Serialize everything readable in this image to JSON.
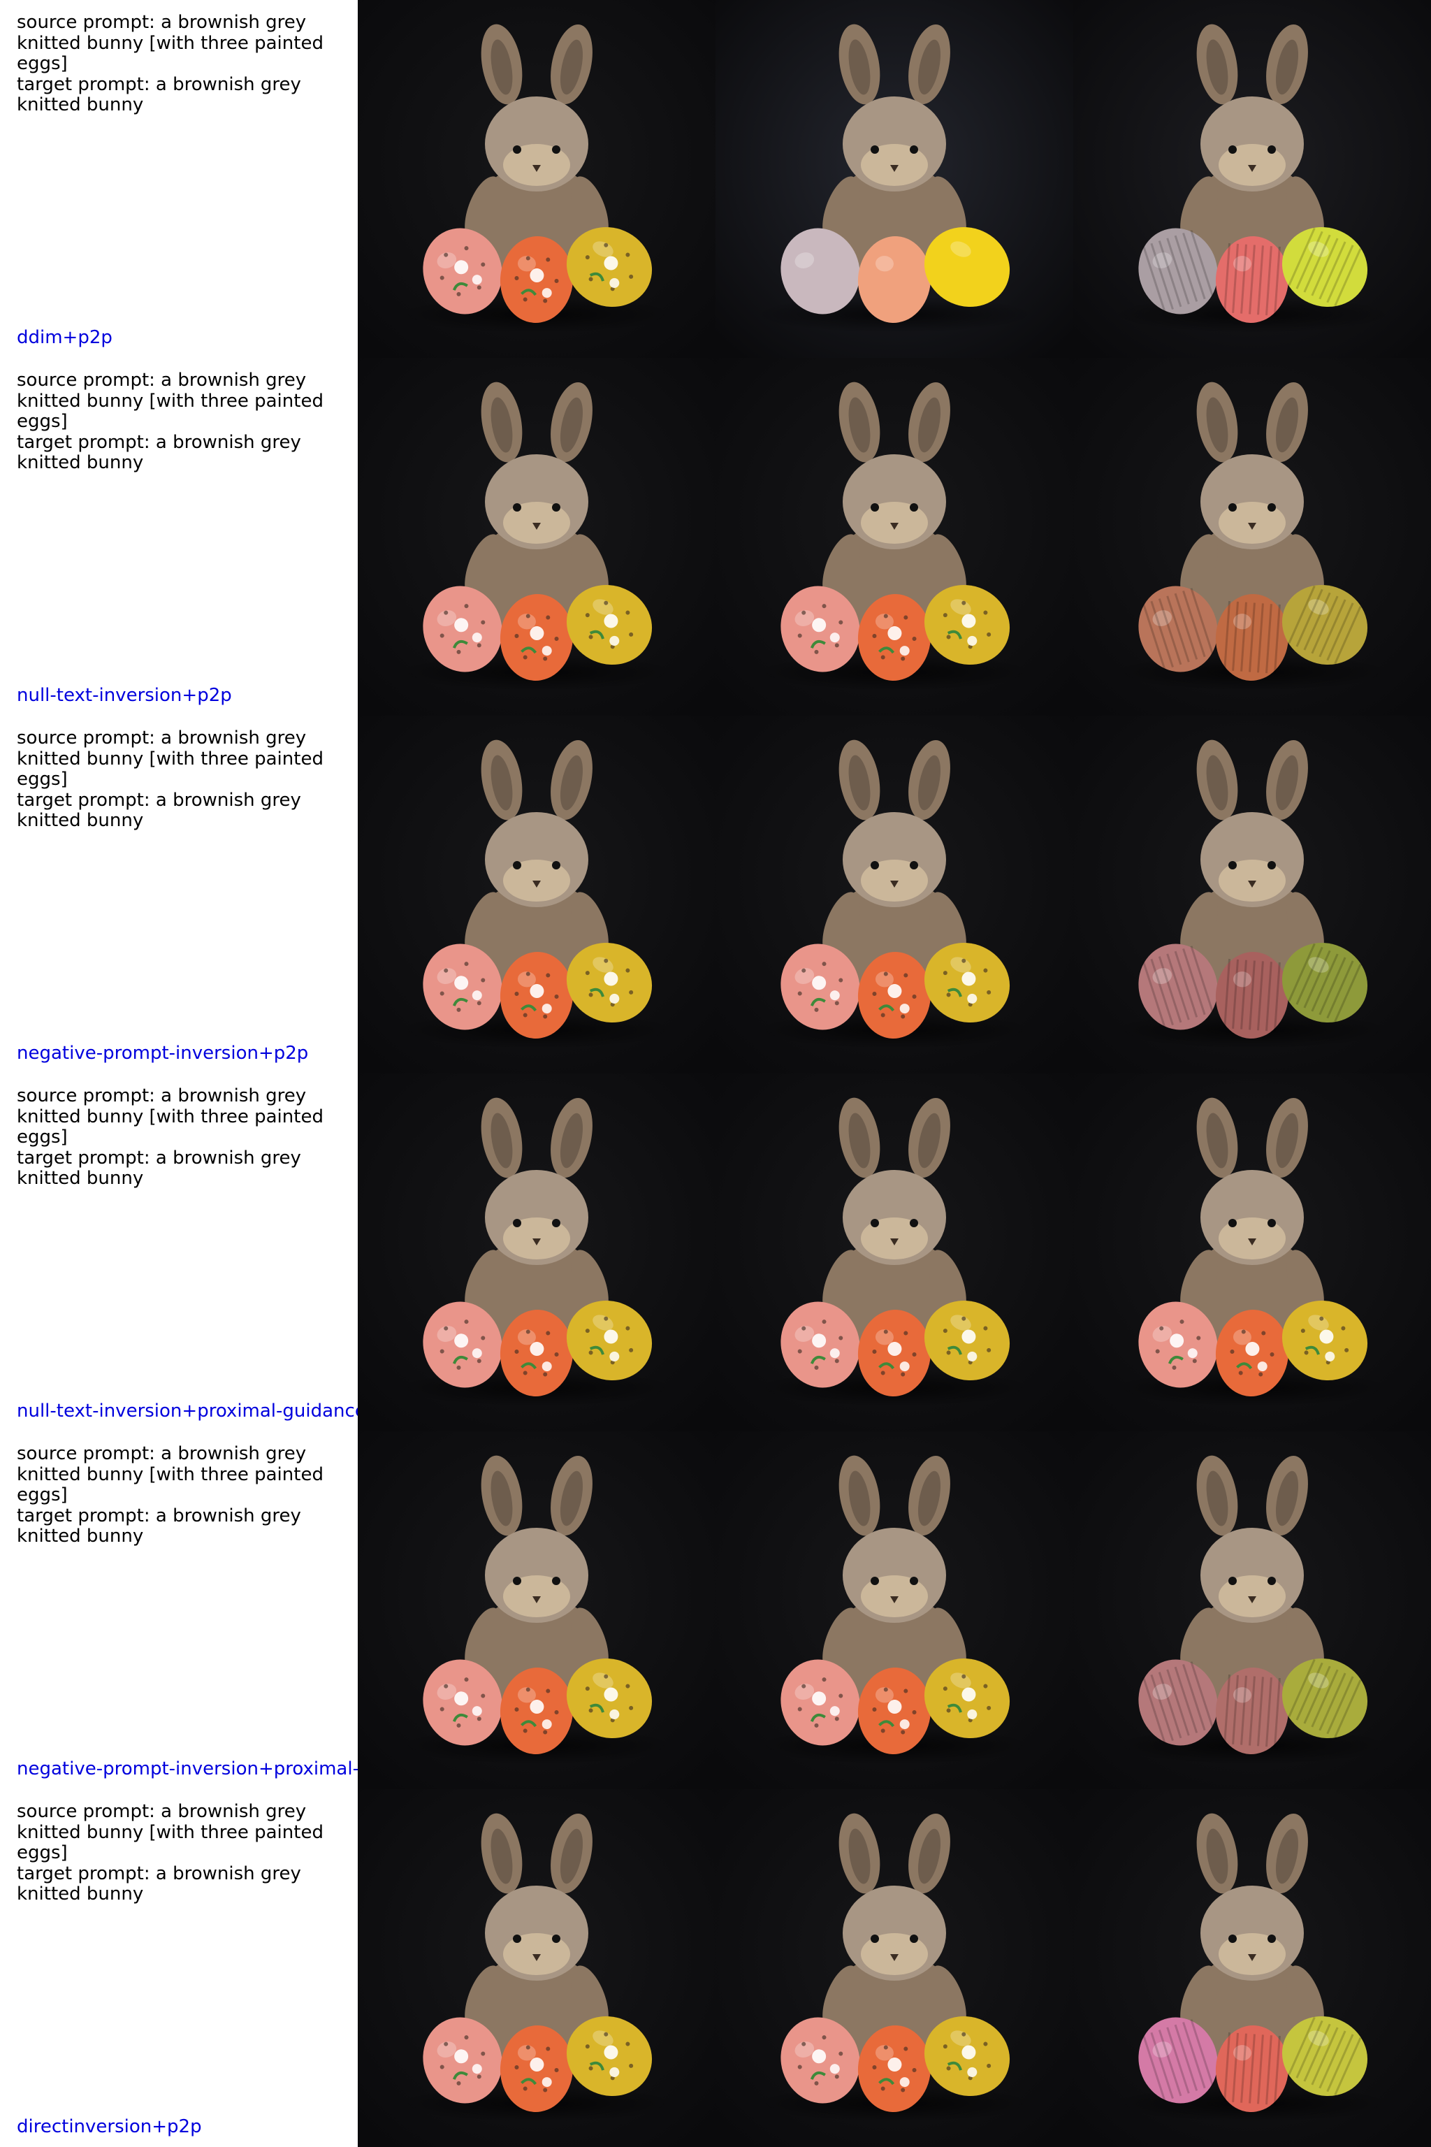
{
  "rows": [
    {
      "prompt": "source prompt: a brownish grey knitted bunny [with three painted eggs]\ntarget prompt: a brownish grey knitted bunny",
      "method": "ddim+p2p",
      "cells": [
        {
          "variant": "painted",
          "eggs": [
            "#e9958a",
            "#e86a3a",
            "#d9b52a"
          ],
          "bg": "#161618"
        },
        {
          "variant": "plain",
          "eggs": [
            "#c9b8be",
            "#f0a17d",
            "#f2d21c"
          ],
          "bg": "#23252d"
        },
        {
          "variant": "knit",
          "eggs": [
            "#aa9ea3",
            "#e46d6a",
            "#d2dc3c"
          ],
          "bg": "#1c1c20"
        }
      ]
    },
    {
      "prompt": "source prompt: a brownish grey knitted bunny [with three painted eggs]\ntarget prompt: a brownish grey knitted bunny",
      "method": "null-text-inversion+p2p",
      "cells": [
        {
          "variant": "painted",
          "eggs": [
            "#e9958a",
            "#e86a3a",
            "#d9b52a"
          ],
          "bg": "#161618"
        },
        {
          "variant": "painted",
          "eggs": [
            "#e9958a",
            "#e86a3a",
            "#d9b52a"
          ],
          "bg": "#161618"
        },
        {
          "variant": "knit",
          "eggs": [
            "#b9745a",
            "#c06a43",
            "#b7a43a"
          ],
          "bg": "#161618"
        }
      ]
    },
    {
      "prompt": "source prompt: a brownish grey knitted bunny [with three painted eggs]\ntarget prompt: a brownish grey knitted bunny",
      "method": "negative-prompt-inversion+p2p",
      "cells": [
        {
          "variant": "painted",
          "eggs": [
            "#e9958a",
            "#e86a3a",
            "#d9b52a"
          ],
          "bg": "#161618"
        },
        {
          "variant": "painted",
          "eggs": [
            "#e9958a",
            "#e86a3a",
            "#d9b52a"
          ],
          "bg": "#161618"
        },
        {
          "variant": "knit",
          "eggs": [
            "#b5787a",
            "#a8615e",
            "#8e9a3a"
          ],
          "bg": "#161618"
        }
      ]
    },
    {
      "prompt": "source prompt: a brownish grey knitted bunny [with three painted eggs]\ntarget prompt: a brownish grey knitted bunny",
      "method": "null-text-inversion+proximal-guidance",
      "cells": [
        {
          "variant": "painted",
          "eggs": [
            "#e9958a",
            "#e86a3a",
            "#d9b52a"
          ],
          "bg": "#161618"
        },
        {
          "variant": "painted",
          "eggs": [
            "#e9958a",
            "#e86a3a",
            "#d9b52a"
          ],
          "bg": "#161618"
        },
        {
          "variant": "painted",
          "eggs": [
            "#e9958a",
            "#e86a3a",
            "#d9b52a"
          ],
          "bg": "#161618"
        }
      ]
    },
    {
      "prompt": "source prompt: a brownish grey knitted bunny [with three painted eggs]\ntarget prompt: a brownish grey knitted bunny",
      "method": "negative-prompt-inversion+proximal-guidance",
      "cells": [
        {
          "variant": "painted",
          "eggs": [
            "#e9958a",
            "#e86a3a",
            "#d9b52a"
          ],
          "bg": "#161618"
        },
        {
          "variant": "painted",
          "eggs": [
            "#e9958a",
            "#e86a3a",
            "#d9b52a"
          ],
          "bg": "#161618"
        },
        {
          "variant": "knit",
          "eggs": [
            "#b5787a",
            "#b06e6a",
            "#a9ac3c"
          ],
          "bg": "#161618"
        }
      ]
    },
    {
      "prompt": "source prompt: a brownish grey knitted bunny [with three painted eggs]\ntarget prompt: a brownish grey knitted bunny",
      "method": "directinversion+p2p",
      "cells": [
        {
          "variant": "painted",
          "eggs": [
            "#e9958a",
            "#e86a3a",
            "#d9b52a"
          ],
          "bg": "#161618"
        },
        {
          "variant": "painted",
          "eggs": [
            "#e9958a",
            "#e86a3a",
            "#d9b52a"
          ],
          "bg": "#161618"
        },
        {
          "variant": "knit",
          "eggs": [
            "#d47aa6",
            "#e0675a",
            "#c5c53e"
          ],
          "bg": "#161618"
        }
      ]
    }
  ],
  "colors": {
    "method_label": "#0000dd",
    "prompt_text": "#000000",
    "bunny_body": "#8c7762",
    "bunny_light": "#a89684",
    "bunny_face": "#cbb79a",
    "bunny_ear_inner": "#6e5d4d"
  }
}
